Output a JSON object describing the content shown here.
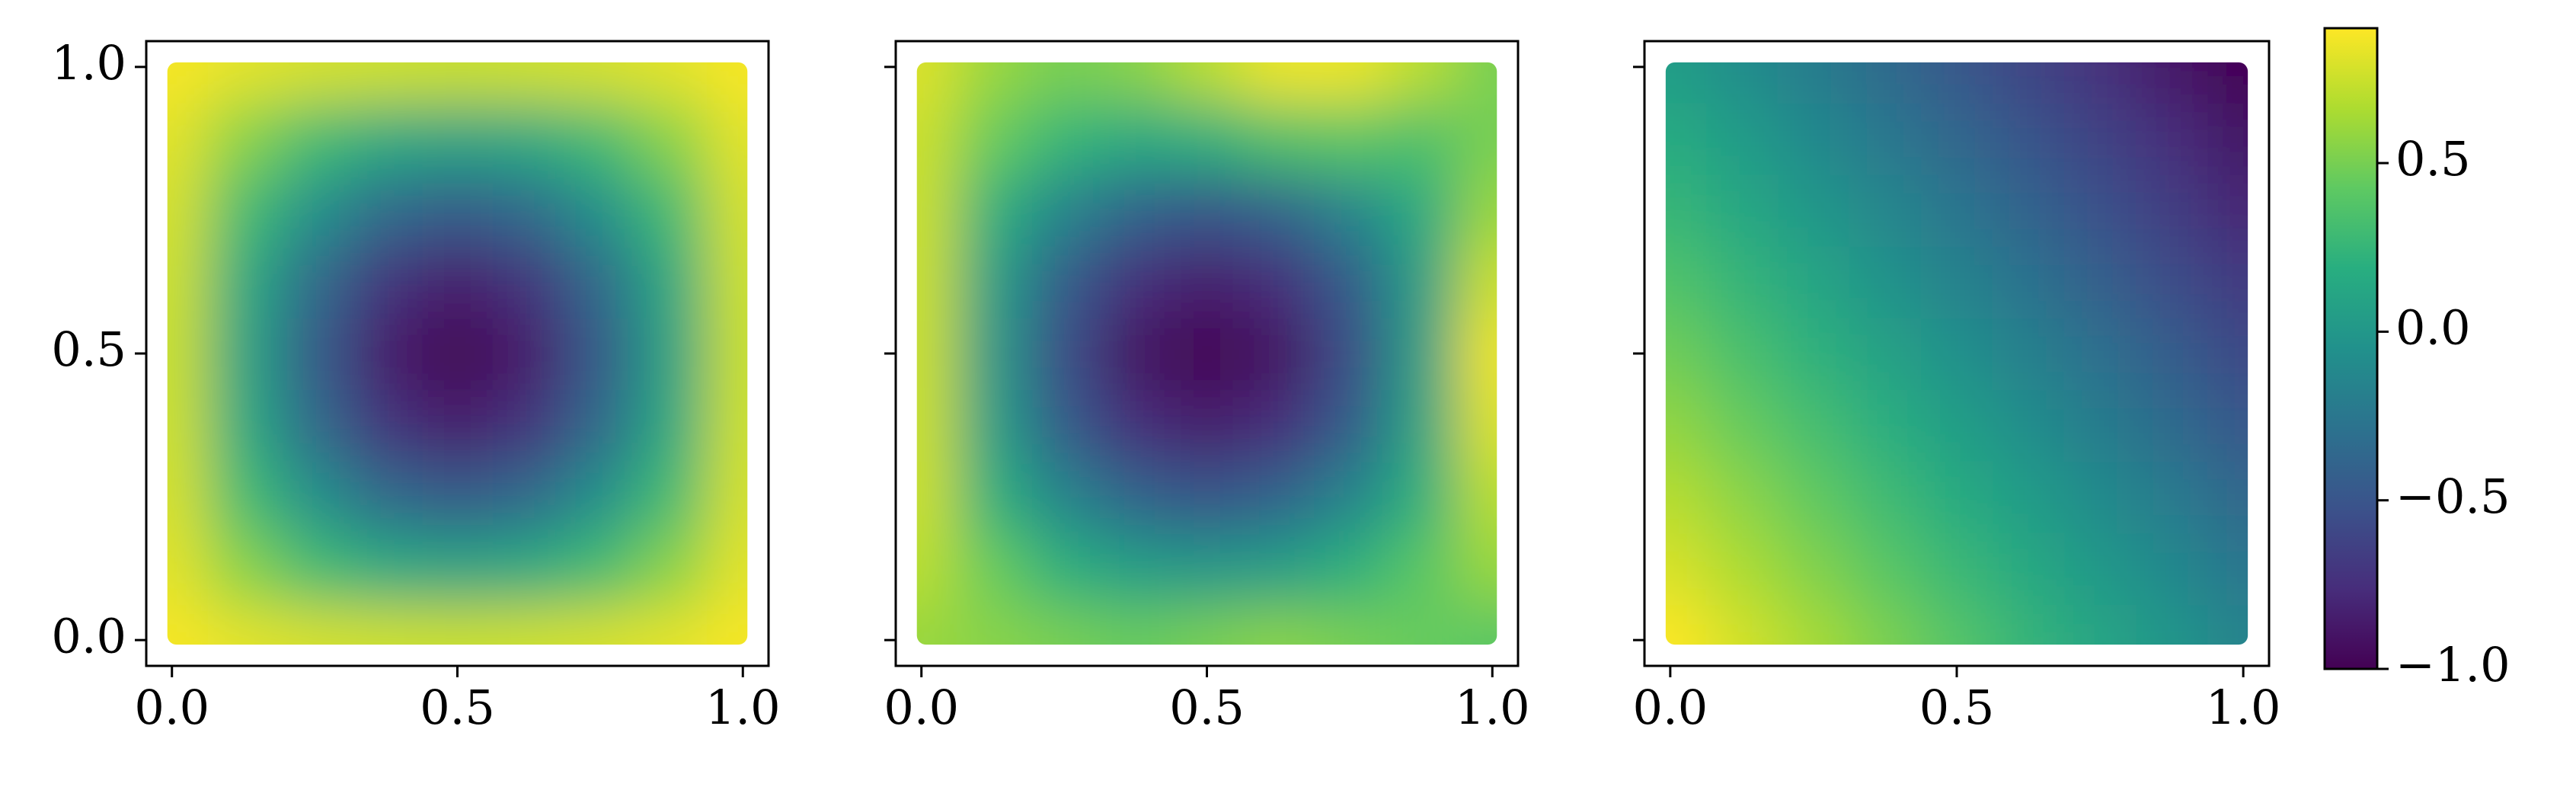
{
  "chart_data": [
    {
      "type": "heatmap",
      "x": [
        0,
        0.125,
        0.25,
        0.375,
        0.5,
        0.625,
        0.75,
        0.875,
        1
      ],
      "y": [
        0,
        0.125,
        0.25,
        0.375,
        0.5,
        0.625,
        0.75,
        0.875,
        1
      ],
      "z": [
        [
          0.88,
          0.82,
          0.78,
          0.76,
          0.75,
          0.76,
          0.78,
          0.82,
          0.88
        ],
        [
          0.82,
          0.55,
          0.3,
          0.15,
          0.1,
          0.15,
          0.3,
          0.55,
          0.82
        ],
        [
          0.78,
          0.3,
          -0.05,
          -0.35,
          -0.45,
          -0.35,
          -0.05,
          0.3,
          0.78
        ],
        [
          0.76,
          0.15,
          -0.35,
          -0.72,
          -0.85,
          -0.72,
          -0.35,
          0.15,
          0.76
        ],
        [
          0.75,
          0.1,
          -0.45,
          -0.85,
          -1.0,
          -0.85,
          -0.45,
          0.1,
          0.75
        ],
        [
          0.76,
          0.15,
          -0.35,
          -0.72,
          -0.85,
          -0.72,
          -0.35,
          0.15,
          0.76
        ],
        [
          0.78,
          0.3,
          -0.05,
          -0.35,
          -0.45,
          -0.35,
          -0.05,
          0.3,
          0.78
        ],
        [
          0.82,
          0.55,
          0.3,
          0.15,
          0.1,
          0.15,
          0.3,
          0.55,
          0.82
        ],
        [
          0.88,
          0.82,
          0.78,
          0.76,
          0.75,
          0.76,
          0.78,
          0.82,
          0.88
        ]
      ],
      "xlim": [
        -0.045,
        1.045
      ],
      "ylim": [
        -0.045,
        1.045
      ],
      "xticks": [
        {
          "value": 0,
          "label": "0.0"
        },
        0.5,
        {
          "value": 1,
          "label": "1.0"
        }
      ],
      "yticks": [
        {
          "value": 0,
          "label": "0.0"
        },
        0.5,
        {
          "value": 1,
          "label": "1.0"
        }
      ]
    },
    {
      "type": "heatmap",
      "x": [
        0,
        0.125,
        0.25,
        0.375,
        0.5,
        0.625,
        0.75,
        0.875,
        1
      ],
      "y": [
        0,
        0.125,
        0.25,
        0.375,
        0.5,
        0.625,
        0.75,
        0.875,
        1
      ],
      "z": [
        [
          0.6,
          0.55,
          0.5,
          0.45,
          0.5,
          0.55,
          0.5,
          0.45,
          0.4
        ],
        [
          0.7,
          0.45,
          0.2,
          0.05,
          0.0,
          0.05,
          0.2,
          0.4,
          0.6
        ],
        [
          0.75,
          0.2,
          -0.15,
          -0.4,
          -0.5,
          -0.4,
          -0.15,
          0.2,
          0.7
        ],
        [
          0.75,
          0.05,
          -0.45,
          -0.75,
          -0.85,
          -0.75,
          -0.45,
          0.1,
          0.8
        ],
        [
          0.75,
          0.0,
          -0.55,
          -0.9,
          -1.0,
          -0.9,
          -0.55,
          0.05,
          0.85
        ],
        [
          0.75,
          0.05,
          -0.45,
          -0.75,
          -0.85,
          -0.75,
          -0.45,
          0.05,
          0.75
        ],
        [
          0.75,
          0.2,
          -0.15,
          -0.4,
          -0.5,
          -0.4,
          -0.15,
          0.15,
          0.6
        ],
        [
          0.75,
          0.45,
          0.25,
          0.15,
          0.2,
          0.35,
          0.4,
          0.35,
          0.5
        ],
        [
          0.8,
          0.6,
          0.5,
          0.55,
          0.7,
          0.85,
          0.85,
          0.7,
          0.5
        ]
      ],
      "xlim": [
        -0.045,
        1.045
      ],
      "ylim": [
        -0.045,
        1.045
      ],
      "sharey": true,
      "xticks": [
        {
          "value": 0,
          "label": "0.0"
        },
        0.5,
        {
          "value": 1,
          "label": "1.0"
        }
      ]
    },
    {
      "type": "heatmap",
      "x": [
        0,
        0.125,
        0.25,
        0.375,
        0.5,
        0.625,
        0.75,
        0.875,
        1
      ],
      "y": [
        0,
        0.125,
        0.25,
        0.375,
        0.5,
        0.625,
        0.75,
        0.875,
        1
      ],
      "z": [
        [
          0.9,
          0.77,
          0.64,
          0.51,
          0.38,
          0.24,
          0.11,
          -0.02,
          -0.15
        ],
        [
          0.79,
          0.66,
          0.53,
          0.4,
          0.27,
          0.14,
          0.01,
          -0.12,
          -0.26
        ],
        [
          0.69,
          0.56,
          0.43,
          0.29,
          0.16,
          0.03,
          -0.1,
          -0.23,
          -0.36
        ],
        [
          0.58,
          0.45,
          0.32,
          0.19,
          0.06,
          -0.08,
          -0.21,
          -0.34,
          -0.47
        ],
        [
          0.48,
          0.34,
          0.21,
          0.08,
          -0.05,
          -0.18,
          -0.31,
          -0.44,
          -0.58
        ],
        [
          0.37,
          0.24,
          0.11,
          -0.03,
          -0.16,
          -0.29,
          -0.42,
          -0.55,
          -0.68
        ],
        [
          0.26,
          0.13,
          0.0,
          -0.13,
          -0.26,
          -0.39,
          -0.53,
          -0.66,
          -0.79
        ],
        [
          0.16,
          0.03,
          -0.11,
          -0.24,
          -0.37,
          -0.5,
          -0.63,
          -0.76,
          -0.89
        ],
        [
          0.05,
          -0.08,
          -0.21,
          -0.34,
          -0.48,
          -0.61,
          -0.74,
          -0.87,
          -1.0
        ]
      ],
      "xlim": [
        -0.045,
        1.045
      ],
      "ylim": [
        -0.045,
        1.045
      ],
      "sharey": true,
      "xticks": [
        {
          "value": 0,
          "label": "0.0"
        },
        0.5,
        {
          "value": 1,
          "label": "1.0"
        }
      ]
    },
    {
      "type": "colorbar",
      "colormap": "viridis",
      "clim": [
        -1.0,
        0.9
      ],
      "ticks": [
        {
          "value": -1,
          "label": "−1.0"
        },
        {
          "value": -0.5,
          "label": "−0.5"
        },
        {
          "value": 0,
          "label": "0.0"
        },
        0.5
      ]
    }
  ]
}
